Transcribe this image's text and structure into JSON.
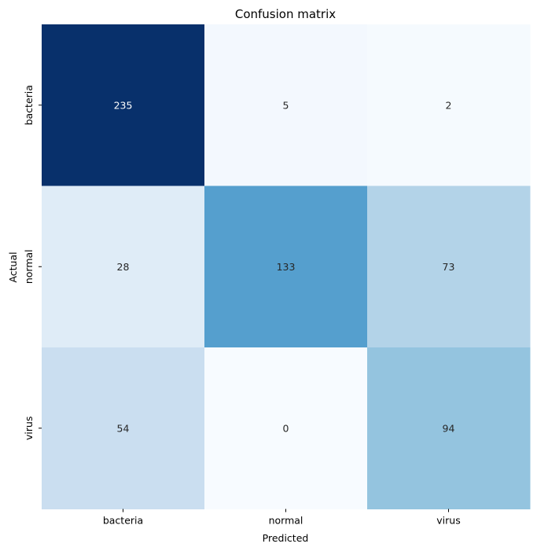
{
  "chart_data": {
    "type": "heatmap",
    "title": "Confusion matrix",
    "xlabel": "Predicted",
    "ylabel": "Actual",
    "x_categories": [
      "bacteria",
      "normal",
      "virus"
    ],
    "y_categories": [
      "bacteria",
      "normal",
      "virus"
    ],
    "values": [
      [
        235,
        5,
        2
      ],
      [
        28,
        133,
        73
      ],
      [
        54,
        0,
        94
      ]
    ],
    "colormap": "Blues",
    "colorbar": false,
    "value_range": [
      0,
      235
    ],
    "grid": false
  }
}
